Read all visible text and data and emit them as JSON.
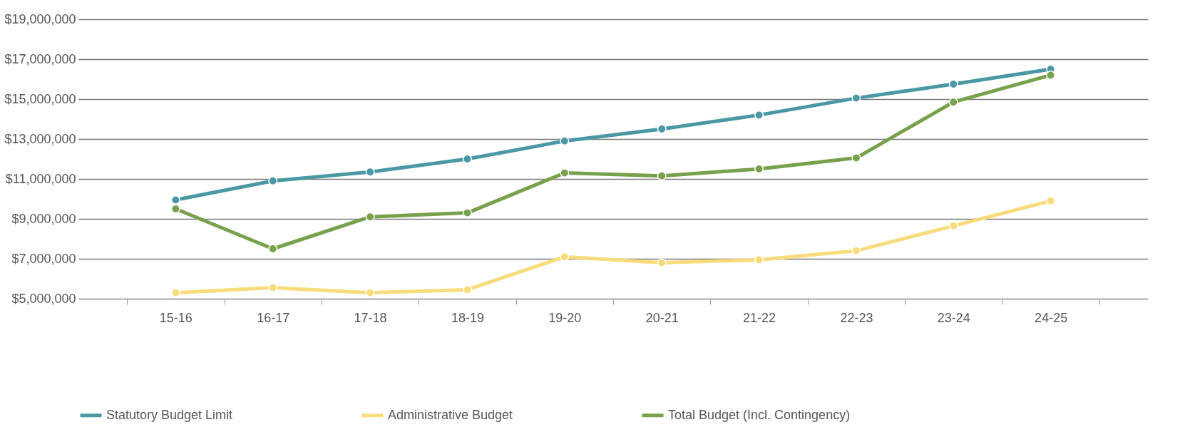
{
  "chart_data": {
    "type": "line",
    "categories": [
      "15-16",
      "16-17",
      "17-18",
      "18-19",
      "19-20",
      "20-21",
      "21-22",
      "22-23",
      "23-24",
      "24-25"
    ],
    "series": [
      {
        "name": "Statutory Budget Limit",
        "color": "#4a98a3",
        "values": [
          9950000,
          10900000,
          11350000,
          12000000,
          12900000,
          13500000,
          14200000,
          15050000,
          15750000,
          16500000
        ]
      },
      {
        "name": "Administrative Budget",
        "color": "#f8dc7c",
        "values": [
          5300000,
          5550000,
          5300000,
          5450000,
          7100000,
          6800000,
          6950000,
          7400000,
          8650000,
          9900000
        ]
      },
      {
        "name": "Total Budget (Incl. Contingency)",
        "color": "#77a14b",
        "values": [
          9500000,
          7500000,
          9100000,
          9300000,
          11300000,
          11150000,
          11500000,
          12050000,
          14850000,
          16200000
        ]
      }
    ],
    "ylim": [
      5000000,
      19000000
    ],
    "yticks": [
      {
        "value": 5000000,
        "label": "$5,000,000"
      },
      {
        "value": 7000000,
        "label": "$7,000,000"
      },
      {
        "value": 9000000,
        "label": "$9,000,000"
      },
      {
        "value": 11000000,
        "label": "$11,000,000"
      },
      {
        "value": 13000000,
        "label": "$13,000,000"
      },
      {
        "value": 15000000,
        "label": "$15,000,000"
      },
      {
        "value": 17000000,
        "label": "$17,000,000"
      },
      {
        "value": 19000000,
        "label": "$19,000,000"
      }
    ],
    "grid": "y",
    "legend": "bottom",
    "marker": "circle",
    "line_style": "solid"
  }
}
